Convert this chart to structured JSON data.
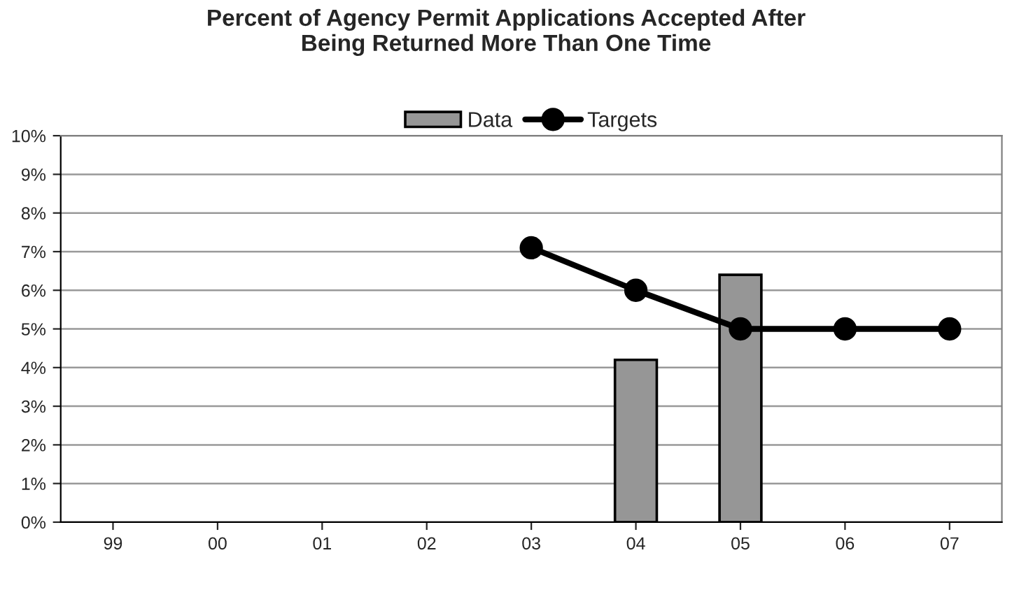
{
  "chart_data": {
    "type": "bar",
    "title": "Percent of Agency Permit Applications Accepted After\nBeing Returned More Than One Time",
    "categories": [
      "99",
      "00",
      "01",
      "02",
      "03",
      "04",
      "05",
      "06",
      "07"
    ],
    "series": [
      {
        "name": "Data",
        "color": "#969696",
        "values": [
          null,
          null,
          null,
          null,
          null,
          4.2,
          6.4,
          null,
          null
        ]
      },
      {
        "name": "Targets",
        "type": "line",
        "color": "#000000",
        "marker": "circle",
        "values": [
          null,
          null,
          null,
          null,
          7.1,
          6.0,
          5.0,
          5.0,
          5.0
        ]
      }
    ],
    "ylim": [
      0,
      10
    ],
    "yticks": [
      {
        "value": 0,
        "label": "0%"
      },
      {
        "value": 1,
        "label": "1%"
      },
      {
        "value": 2,
        "label": "2%"
      },
      {
        "value": 3,
        "label": "3%"
      },
      {
        "value": 4,
        "label": "4%"
      },
      {
        "value": 5,
        "label": "5%"
      },
      {
        "value": 6,
        "label": "6%"
      },
      {
        "value": 7,
        "label": "7%"
      },
      {
        "value": 8,
        "label": "8%"
      },
      {
        "value": 9,
        "label": "9%"
      },
      {
        "value": 10,
        "label": "10%"
      }
    ],
    "grid": "y",
    "legend": "top"
  }
}
